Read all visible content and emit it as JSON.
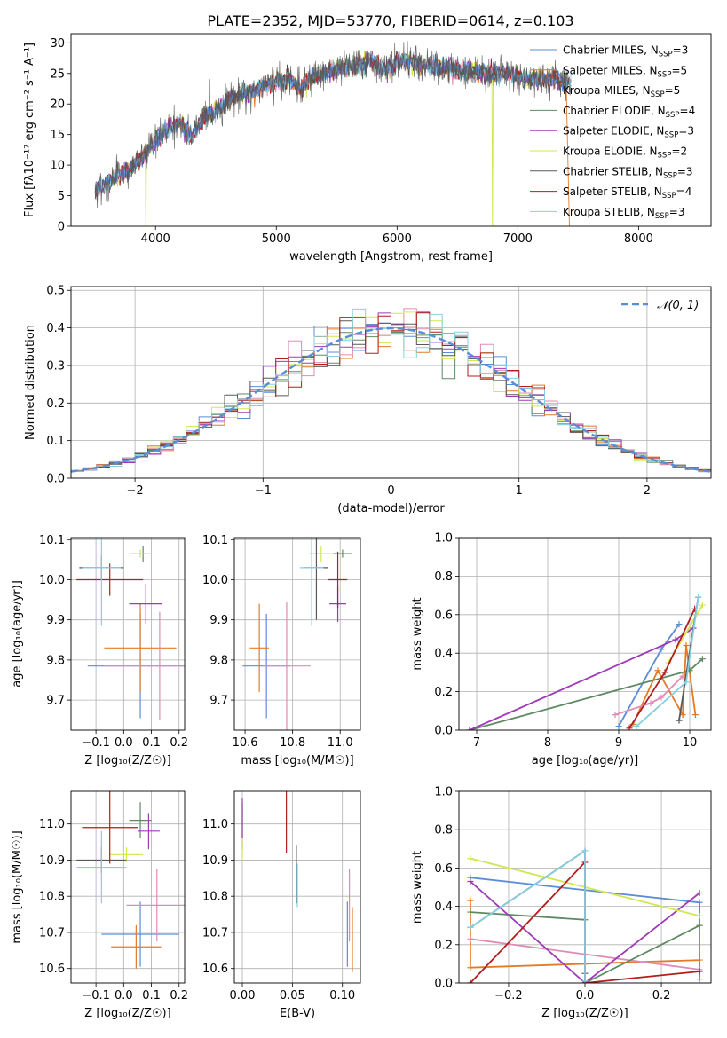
{
  "figure": {
    "title": "PLATE=2352, MJD=53770, FIBERID=0614, z=0.103"
  },
  "colors": {
    "Chabrier MILES": "#5b8cd6",
    "Salpeter MILES": "#e47a26",
    "Kroupa MILES": "#e08bb6",
    "Chabrier ELODIE": "#5e8a62",
    "Salpeter ELODIE": "#9e39b7",
    "Kroupa ELODIE": "#cfe84e",
    "Chabrier STELIB": "#595959",
    "Salpeter STELIB": "#b21d1d",
    "Kroupa STELIB": "#86cfe0",
    "gaussian": "#5b8cd6"
  },
  "chart_data": [
    {
      "id": "spectrum",
      "type": "line",
      "title": "PLATE=2352, MJD=53770, FIBERID=0614, z=0.103",
      "xlabel": "wavelength [Angstrom, rest frame]",
      "ylabel": "Flux [fλ10⁻¹⁷ erg cm⁻² s⁻¹ A⁻¹]",
      "xlim": [
        3300,
        8600
      ],
      "ylim": [
        0,
        31.5
      ],
      "xticks": [
        4000,
        5000,
        6000,
        7000,
        8000
      ],
      "yticks": [
        0,
        5,
        10,
        15,
        20,
        25,
        30
      ],
      "legend": "upper right",
      "legend_entries": [
        {
          "name": "Chabrier MILES",
          "nssp": "3"
        },
        {
          "name": "Salpeter MILES",
          "nssp": "5"
        },
        {
          "name": "Kroupa MILES",
          "nssp": "5"
        },
        {
          "name": "Chabrier ELODIE",
          "nssp": "4"
        },
        {
          "name": "Salpeter ELODIE",
          "nssp": "3"
        },
        {
          "name": "Kroupa ELODIE",
          "nssp": "2"
        },
        {
          "name": "Chabrier STELIB",
          "nssp": "3"
        },
        {
          "name": "Salpeter STELIB",
          "nssp": "4"
        },
        {
          "name": "Kroupa STELIB",
          "nssp": "3"
        }
      ],
      "continuum": [
        [
          3500,
          6
        ],
        [
          3600,
          7
        ],
        [
          3700,
          8.5
        ],
        [
          3800,
          9.5
        ],
        [
          3900,
          11.5
        ],
        [
          4000,
          14
        ],
        [
          4100,
          16
        ],
        [
          4200,
          17
        ],
        [
          4300,
          14.5
        ],
        [
          4400,
          18
        ],
        [
          4500,
          19
        ],
        [
          4600,
          20.5
        ],
        [
          4700,
          21.5
        ],
        [
          4800,
          22
        ],
        [
          4900,
          23
        ],
        [
          5000,
          23.5
        ],
        [
          5100,
          24
        ],
        [
          5200,
          22.5
        ],
        [
          5300,
          24.5
        ],
        [
          5400,
          25
        ],
        [
          5500,
          25.5
        ],
        [
          5600,
          26
        ],
        [
          5700,
          26.5
        ],
        [
          5800,
          27
        ],
        [
          5900,
          25.5
        ],
        [
          6000,
          27
        ],
        [
          6100,
          27
        ],
        [
          6200,
          26.5
        ],
        [
          6300,
          26
        ],
        [
          6400,
          26
        ],
        [
          6500,
          25.5
        ],
        [
          6600,
          25.5
        ],
        [
          6700,
          25
        ],
        [
          6800,
          25
        ],
        [
          6900,
          25
        ],
        [
          7000,
          24.5
        ],
        [
          7100,
          24
        ],
        [
          7200,
          24
        ],
        [
          7300,
          24
        ],
        [
          7400,
          23.5
        ],
        [
          7440,
          23.5
        ]
      ],
      "dropouts": [
        {
          "x": 3920,
          "series": "Kroupa ELODIE"
        },
        {
          "x": 6790,
          "series": "Kroupa ELODIE"
        },
        {
          "x": 7430,
          "series": "Salpeter MILES"
        }
      ]
    },
    {
      "id": "residuals",
      "type": "histogram",
      "xlabel": "(data-model)/error",
      "ylabel": "Normed distribution",
      "xlim": [
        -2.5,
        2.5
      ],
      "ylim": [
        0,
        0.51
      ],
      "xticks": [
        -2,
        -1,
        0,
        1,
        2
      ],
      "yticks": [
        0.0,
        0.1,
        0.2,
        0.3,
        0.4,
        0.5
      ],
      "grid": true,
      "legend": "upper right",
      "gaussian_label": "𝒩(0, 1)",
      "bin_width": 0.1
    },
    {
      "id": "age_vs_Z",
      "type": "errorbar",
      "xlabel": "Z [log₁₀(Z/Z☉)]",
      "ylabel": "age  [log₁₀(age/yr)]",
      "xlim": [
        -0.19,
        0.22
      ],
      "ylim": [
        9.625,
        10.105
      ],
      "xticks": [
        -0.1,
        0.0,
        0.1,
        0.2
      ],
      "yticks": [
        9.7,
        9.8,
        9.9,
        10.0,
        10.1
      ],
      "grid": true,
      "points": [
        {
          "series": "Chabrier MILES",
          "x": 0.06,
          "xerr": 0.19,
          "y": 9.785,
          "yerr": 0.13
        },
        {
          "series": "Salpeter MILES",
          "x": 0.06,
          "xerr": 0.13,
          "y": 9.83,
          "yerr": 0.11
        },
        {
          "series": "Kroupa MILES",
          "x": 0.13,
          "xerr": 0.2,
          "y": 9.785,
          "yerr": 0.135
        },
        {
          "series": "Chabrier ELODIE",
          "x": 0.07,
          "xerr": 0.02,
          "y": 10.065,
          "yerr": 0.02
        },
        {
          "series": "Salpeter ELODIE",
          "x": 0.08,
          "xerr": 0.06,
          "y": 9.94,
          "yerr": 0.05
        },
        {
          "series": "Kroupa ELODIE",
          "x": 0.06,
          "xerr": 0.04,
          "y": 10.065,
          "yerr": 0.01
        },
        {
          "series": "Chabrier STELIB",
          "x": -0.08,
          "xerr": 0.08,
          "y": 10.03,
          "yerr": 0.03
        },
        {
          "series": "Salpeter STELIB",
          "x": -0.05,
          "xerr": 0.12,
          "y": 10.0,
          "yerr": 0.04
        },
        {
          "series": "Kroupa STELIB",
          "x": -0.08,
          "xerr": 0.07,
          "y": 10.03,
          "yerr": 0.145
        }
      ]
    },
    {
      "id": "age_vs_mass",
      "type": "errorbar",
      "xlabel": "mass [log₁₀(M/M☉)]",
      "ylabel": "",
      "xlim": [
        10.555,
        11.085
      ],
      "ylim": [
        9.625,
        10.105
      ],
      "xticks": [
        10.6,
        10.8,
        11.0
      ],
      "yticks": [
        9.7,
        9.8,
        9.9,
        10.0,
        10.1
      ],
      "grid": true,
      "points": [
        {
          "series": "Chabrier MILES",
          "x": 10.69,
          "xerr": 0.1,
          "y": 9.785,
          "yerr": 0.13
        },
        {
          "series": "Salpeter MILES",
          "x": 10.66,
          "xerr": 0.04,
          "y": 9.83,
          "yerr": 0.11
        },
        {
          "series": "Kroupa MILES",
          "x": 10.775,
          "xerr": 0.1,
          "y": 9.785,
          "yerr": 0.16
        },
        {
          "series": "Chabrier ELODIE",
          "x": 11.01,
          "xerr": 0.04,
          "y": 10.065,
          "yerr": 0.01
        },
        {
          "series": "Salpeter ELODIE",
          "x": 10.99,
          "xerr": 0.035,
          "y": 9.94,
          "yerr": 0.045
        },
        {
          "series": "Kroupa ELODIE",
          "x": 10.92,
          "xerr": 0.05,
          "y": 10.065,
          "yerr": 0.02
        },
        {
          "series": "Chabrier STELIB",
          "x": 10.9,
          "xerr": 0.05,
          "y": 10.03,
          "yerr": 0.13
        },
        {
          "series": "Salpeter STELIB",
          "x": 10.99,
          "xerr": 0.04,
          "y": 10.0,
          "yerr": 0.07
        },
        {
          "series": "Kroupa STELIB",
          "x": 10.88,
          "xerr": 0.05,
          "y": 10.03,
          "yerr": 0.145
        }
      ]
    },
    {
      "id": "weight_vs_age",
      "type": "line",
      "xlabel": "age  [log₁₀(age/yr)]",
      "ylabel": "mass weight",
      "xlim": [
        6.75,
        10.3
      ],
      "ylim": [
        0.0,
        1.0
      ],
      "xticks": [
        7,
        8,
        9,
        10
      ],
      "yticks": [
        0.0,
        0.2,
        0.4,
        0.6,
        0.8,
        1.0
      ],
      "grid": true,
      "series": [
        {
          "name": "Chabrier MILES",
          "points": [
            [
              9.0,
              0.02
            ],
            [
              9.6,
              0.42
            ],
            [
              9.85,
              0.55
            ]
          ]
        },
        {
          "name": "Salpeter MILES",
          "points": [
            [
              9.2,
              0.03
            ],
            [
              9.55,
              0.31
            ],
            [
              9.9,
              0.08
            ],
            [
              9.95,
              0.44
            ],
            [
              10.08,
              0.08
            ]
          ]
        },
        {
          "name": "Kroupa MILES",
          "points": [
            [
              8.95,
              0.08
            ],
            [
              9.45,
              0.14
            ],
            [
              9.6,
              0.17
            ],
            [
              9.9,
              0.28
            ]
          ]
        },
        {
          "name": "Chabrier ELODIE",
          "points": [
            [
              6.9,
              0.0
            ],
            [
              10.0,
              0.31
            ],
            [
              10.18,
              0.37
            ]
          ]
        },
        {
          "name": "Salpeter ELODIE",
          "points": [
            [
              6.9,
              0.0
            ],
            [
              9.8,
              0.47
            ],
            [
              10.05,
              0.53
            ]
          ]
        },
        {
          "name": "Kroupa ELODIE",
          "points": [
            [
              9.7,
              0.35
            ],
            [
              10.18,
              0.65
            ]
          ]
        },
        {
          "name": "Chabrier STELIB",
          "points": [
            [
              9.85,
              0.05
            ],
            [
              10.12,
              0.69
            ]
          ]
        },
        {
          "name": "Salpeter STELIB",
          "points": [
            [
              9.15,
              0.01
            ],
            [
              9.65,
              0.3
            ],
            [
              10.07,
              0.63
            ]
          ]
        },
        {
          "name": "Kroupa STELIB",
          "points": [
            [
              9.25,
              0.02
            ],
            [
              9.95,
              0.25
            ],
            [
              10.12,
              0.69
            ]
          ]
        }
      ]
    },
    {
      "id": "mass_vs_Z",
      "type": "errorbar",
      "xlabel": "Z [log₁₀(Z/Z☉)]",
      "ylabel": "mass [log₁₀(M/M☉)]",
      "xlim": [
        -0.19,
        0.22
      ],
      "ylim": [
        10.56,
        11.09
      ],
      "xticks": [
        -0.1,
        0.0,
        0.1,
        0.2
      ],
      "yticks": [
        10.6,
        10.7,
        10.8,
        10.9,
        11.0
      ],
      "grid": true,
      "points": [
        {
          "series": "Chabrier MILES",
          "x": 0.06,
          "xerr": 0.14,
          "y": 10.695,
          "yerr": 0.09
        },
        {
          "series": "Salpeter MILES",
          "x": 0.045,
          "xerr": 0.09,
          "y": 10.66,
          "yerr": 0.06
        },
        {
          "series": "Kroupa MILES",
          "x": 0.12,
          "xerr": 0.11,
          "y": 10.775,
          "yerr": 0.1
        },
        {
          "series": "Chabrier ELODIE",
          "x": 0.06,
          "xerr": 0.04,
          "y": 11.01,
          "yerr": 0.05
        },
        {
          "series": "Salpeter ELODIE",
          "x": 0.09,
          "xerr": 0.04,
          "y": 10.98,
          "yerr": 0.05
        },
        {
          "series": "Kroupa ELODIE",
          "x": 0.01,
          "xerr": 0.06,
          "y": 10.915,
          "yerr": 0.02
        },
        {
          "series": "Chabrier STELIB",
          "x": -0.08,
          "xerr": 0.09,
          "y": 10.9,
          "yerr": 0.035
        },
        {
          "series": "Salpeter STELIB",
          "x": -0.05,
          "xerr": 0.1,
          "y": 10.99,
          "yerr": 0.1
        },
        {
          "series": "Kroupa STELIB",
          "x": -0.08,
          "xerr": 0.09,
          "y": 10.88,
          "yerr": 0.1
        }
      ]
    },
    {
      "id": "mass_vs_ebv",
      "type": "errorbar",
      "xlabel": "E(B-V)",
      "ylabel": "",
      "xlim": [
        -0.008,
        0.118
      ],
      "ylim": [
        10.56,
        11.09
      ],
      "xticks": [
        0.0,
        0.05,
        0.1
      ],
      "yticks": [
        10.6,
        10.7,
        10.8,
        10.9,
        11.0
      ],
      "grid": true,
      "points": [
        {
          "series": "Chabrier MILES",
          "x": 0.105,
          "xerr": 0,
          "y": 10.695,
          "yerr": 0.09
        },
        {
          "series": "Salpeter MILES",
          "x": 0.11,
          "xerr": 0,
          "y": 10.68,
          "yerr": 0.09
        },
        {
          "series": "Kroupa MILES",
          "x": 0.107,
          "xerr": 0,
          "y": 10.775,
          "yerr": 0.1
        },
        {
          "series": "Chabrier ELODIE",
          "x": 0.0,
          "xerr": 0,
          "y": 11.01,
          "yerr": 0.05
        },
        {
          "series": "Salpeter ELODIE",
          "x": 0.0,
          "xerr": 0,
          "y": 11.0,
          "yerr": 0.07
        },
        {
          "series": "Kroupa ELODIE",
          "x": 0.0,
          "xerr": 0,
          "y": 10.93,
          "yerr": 0.03
        },
        {
          "series": "Chabrier STELIB",
          "x": 0.054,
          "xerr": 0,
          "y": 10.86,
          "yerr": 0.08
        },
        {
          "series": "Salpeter STELIB",
          "x": 0.044,
          "xerr": 0,
          "y": 11.02,
          "yerr": 0.1
        },
        {
          "series": "Kroupa STELIB",
          "x": 0.055,
          "xerr": 0,
          "y": 10.83,
          "yerr": 0.06
        }
      ]
    },
    {
      "id": "weight_vs_Z",
      "type": "line",
      "xlabel": "Z [log₁₀(Z/Z☉)]",
      "ylabel": "mass weight",
      "xlim": [
        -0.33,
        0.33
      ],
      "ylim": [
        0.0,
        1.0
      ],
      "xticks": [
        -0.2,
        0.0,
        0.2
      ],
      "yticks": [
        0.0,
        0.2,
        0.4,
        0.6,
        0.8,
        1.0
      ],
      "grid": true,
      "series": [
        {
          "name": "Chabrier MILES",
          "points": [
            [
              -0.3,
              0.55
            ],
            [
              0.3,
              0.42
            ],
            [
              0.3,
              0.02
            ]
          ]
        },
        {
          "name": "Salpeter MILES",
          "points": [
            [
              -0.3,
              0.43
            ],
            [
              -0.3,
              0.08
            ],
            [
              0.3,
              0.12
            ],
            [
              0.3,
              0.3
            ]
          ]
        },
        {
          "name": "Kroupa MILES",
          "points": [
            [
              -0.3,
              0.23
            ],
            [
              0.3,
              0.07
            ]
          ]
        },
        {
          "name": "Chabrier ELODIE",
          "points": [
            [
              -0.3,
              0.37
            ],
            [
              0.0,
              0.33
            ],
            [
              0.0,
              0.0
            ],
            [
              0.3,
              0.3
            ]
          ]
        },
        {
          "name": "Salpeter ELODIE",
          "points": [
            [
              -0.3,
              0.53
            ],
            [
              0.0,
              0.0
            ],
            [
              0.3,
              0.47
            ]
          ]
        },
        {
          "name": "Kroupa ELODIE",
          "points": [
            [
              -0.3,
              0.65
            ],
            [
              0.3,
              0.35
            ]
          ]
        },
        {
          "name": "Chabrier STELIB",
          "points": [
            [
              -0.3,
              0.29
            ],
            [
              0.0,
              0.69
            ],
            [
              0.0,
              0.05
            ]
          ]
        },
        {
          "name": "Salpeter STELIB",
          "points": [
            [
              -0.3,
              0.0
            ],
            [
              0.0,
              0.63
            ],
            [
              0.0,
              0.0
            ],
            [
              0.3,
              0.06
            ]
          ]
        },
        {
          "name": "Kroupa STELIB",
          "points": [
            [
              -0.3,
              0.29
            ],
            [
              0.0,
              0.69
            ],
            [
              0.0,
              0.01
            ]
          ]
        }
      ]
    }
  ]
}
